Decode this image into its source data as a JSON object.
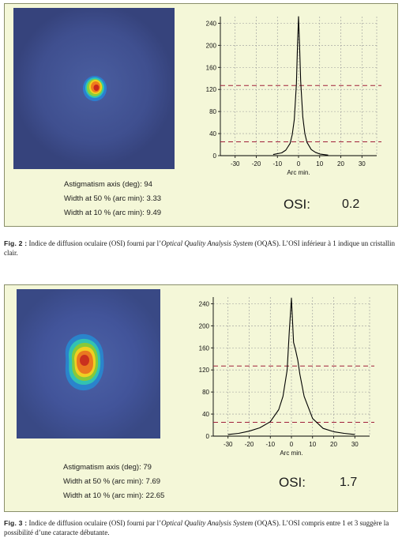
{
  "fig2": {
    "stats": {
      "axis_label": "Astigmatism axis (deg):",
      "axis_value": "94",
      "w50_label": "Width at 50 % (arc min):",
      "w50_value": "3.33",
      "w10_label": "Width at 10 % (arc min):",
      "w10_value": "9.49"
    },
    "osi_label": "OSI:",
    "osi_value": "0.2",
    "caption": {
      "label": "Fig. 2 :",
      "text1": " Indice de diffusion oculaire (OSI) fourni par l’",
      "italic": "Optical Quality Analysis System",
      "text2": " (OQAS). L’OSI inférieur à 1 indique un cristallin clair."
    }
  },
  "fig3": {
    "stats": {
      "axis_label": "Astigmatism axis (deg):",
      "axis_value": "79",
      "w50_label": "Width at 50 % (arc min):",
      "w50_value": "7.69",
      "w10_label": "Width at 10 % (arc min):",
      "w10_value": "22.65"
    },
    "osi_label": "OSI:",
    "osi_value": "1.7",
    "caption": {
      "label": "Fig. 3 :",
      "text1": " Indice de diffusion oculaire (OSI) fourni par l’",
      "italic": "Optical Quality Analysis System",
      "text2": " (OQAS). L’OSI compris entre 1 et 3 suggère la possibilité d’une cataracte débutante."
    }
  },
  "colors": {
    "curve": "#000000",
    "threshold": "#a0203a",
    "grid": "#999999",
    "heat_bg": "#3b4c8c",
    "panel_bg": "#f4f7d8"
  },
  "chart_data": [
    {
      "type": "line",
      "xlabel": "Arc min.",
      "ylabel": "",
      "xticks": [
        -30,
        -20,
        -10,
        0,
        10,
        20,
        30
      ],
      "yticks": [
        0,
        40,
        80,
        120,
        160,
        200,
        240
      ],
      "xlim": [
        -37,
        37
      ],
      "ylim": [
        0,
        252
      ],
      "grid": true,
      "reference_lines_y": [
        127,
        25
      ],
      "series": [
        {
          "x": [
            -12,
            -8,
            -6,
            -4,
            -3,
            -2,
            -1,
            -0.5,
            0,
            0.5,
            1,
            2,
            3,
            4,
            6,
            8,
            10,
            14
          ],
          "y": [
            2,
            5,
            10,
            22,
            38,
            65,
            130,
            200,
            252,
            200,
            135,
            70,
            40,
            24,
            11,
            6,
            3,
            1
          ]
        }
      ]
    },
    {
      "type": "line",
      "xlabel": "Arc min.",
      "ylabel": "",
      "xticks": [
        -30,
        -20,
        -10,
        0,
        10,
        20,
        30
      ],
      "yticks": [
        0,
        40,
        80,
        120,
        160,
        200,
        240
      ],
      "xlim": [
        -37,
        37
      ],
      "ylim": [
        0,
        252
      ],
      "grid": true,
      "reference_lines_y": [
        127,
        25
      ],
      "series": [
        {
          "x": [
            -30,
            -25,
            -20,
            -15,
            -10,
            -6,
            -4,
            -2,
            -1,
            0,
            1,
            2,
            3,
            4,
            6,
            10,
            15,
            20,
            25,
            30
          ],
          "y": [
            3,
            5,
            9,
            15,
            26,
            48,
            72,
            120,
            190,
            250,
            170,
            155,
            138,
            112,
            72,
            32,
            14,
            8,
            5,
            3
          ]
        }
      ]
    }
  ]
}
